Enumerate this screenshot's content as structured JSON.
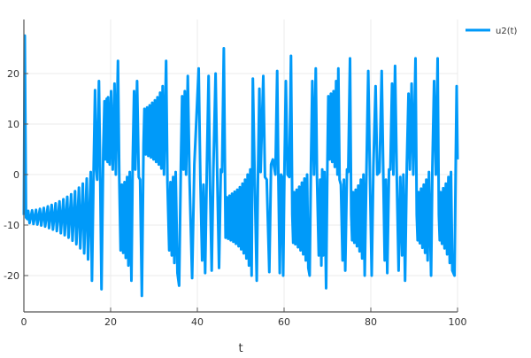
{
  "chart_data": {
    "type": "line",
    "title": "",
    "xlabel": "t",
    "ylabel": "",
    "xlim": [
      0,
      100
    ],
    "ylim": [
      -27.2,
      30.7
    ],
    "xticks": [
      0,
      20,
      40,
      60,
      80,
      100
    ],
    "yticks": [
      -20,
      -10,
      0,
      10,
      20
    ],
    "grid": true,
    "legend": "top-right",
    "series": [
      {
        "name": "u2(t)",
        "color": "#009af9",
        "points": [
          [
            0,
            -8
          ],
          [
            0.2,
            27.5
          ],
          [
            0.5,
            -8.5
          ],
          [
            0.8,
            -8.8
          ],
          [
            1.0,
            -7.2
          ],
          [
            1.3,
            -9.6
          ],
          [
            1.9,
            -7.1
          ],
          [
            2.2,
            -9.8
          ],
          [
            2.8,
            -7.0
          ],
          [
            3.1,
            -9.9
          ],
          [
            3.7,
            -6.8
          ],
          [
            4.0,
            -10.1
          ],
          [
            4.6,
            -6.6
          ],
          [
            4.9,
            -10.3
          ],
          [
            5.5,
            -6.3
          ],
          [
            5.8,
            -10.6
          ],
          [
            6.4,
            -6.0
          ],
          [
            6.7,
            -10.9
          ],
          [
            7.3,
            -5.7
          ],
          [
            7.6,
            -11.2
          ],
          [
            8.2,
            -5.3
          ],
          [
            8.5,
            -11.6
          ],
          [
            9.1,
            -4.9
          ],
          [
            9.4,
            -12.0
          ],
          [
            10.0,
            -4.4
          ],
          [
            10.3,
            -12.5
          ],
          [
            10.9,
            -3.9
          ],
          [
            11.2,
            -13.1
          ],
          [
            11.8,
            -3.3
          ],
          [
            12.1,
            -13.8
          ],
          [
            12.7,
            -2.6
          ],
          [
            13.0,
            -14.6
          ],
          [
            13.6,
            -1.8
          ],
          [
            13.9,
            -15.6
          ],
          [
            14.5,
            -0.8
          ],
          [
            14.8,
            -16.8
          ],
          [
            15.4,
            0.5
          ],
          [
            15.7,
            -21
          ],
          [
            16.1,
            2
          ],
          [
            16.4,
            16.7
          ],
          [
            16.7,
            1
          ],
          [
            16.9,
            -1
          ],
          [
            17.3,
            18.5
          ],
          [
            17.6,
            0
          ],
          [
            17.9,
            -22.7
          ],
          [
            18.3,
            5
          ],
          [
            18.6,
            14.5
          ],
          [
            18.8,
            3
          ],
          [
            19.1,
            15
          ],
          [
            19.3,
            2.5
          ],
          [
            19.4,
            15.3
          ],
          [
            19.8,
            2
          ],
          [
            20.1,
            16.5
          ],
          [
            20.5,
            1
          ],
          [
            20.9,
            18
          ],
          [
            21.2,
            0
          ],
          [
            21.7,
            22.5
          ],
          [
            22.0,
            -1
          ],
          [
            22.3,
            -15
          ],
          [
            22.6,
            -2
          ],
          [
            22.9,
            -15.5
          ],
          [
            23.2,
            -1.5
          ],
          [
            23.5,
            -16.5
          ],
          [
            23.8,
            -0.5
          ],
          [
            24.1,
            -18
          ],
          [
            24.4,
            0.5
          ],
          [
            24.8,
            -21
          ],
          [
            25.1,
            3
          ],
          [
            25.4,
            16.5
          ],
          [
            25.7,
            1
          ],
          [
            26.1,
            18.5
          ],
          [
            26.5,
            -0.5
          ],
          [
            26.8,
            -1
          ],
          [
            27.2,
            -24
          ],
          [
            27.6,
            6
          ],
          [
            27.8,
            13
          ],
          [
            28.1,
            4
          ],
          [
            28.4,
            13.3
          ],
          [
            28.7,
            3.7
          ],
          [
            29.0,
            13.7
          ],
          [
            29.3,
            3.4
          ],
          [
            29.6,
            14.2
          ],
          [
            29.9,
            3
          ],
          [
            30.2,
            14.7
          ],
          [
            30.5,
            2.5
          ],
          [
            30.8,
            15.3
          ],
          [
            31.1,
            2
          ],
          [
            31.4,
            16.2
          ],
          [
            31.7,
            1.2
          ],
          [
            32.0,
            17.5
          ],
          [
            32.3,
            0
          ],
          [
            32.8,
            22.5
          ],
          [
            33.1,
            -1.5
          ],
          [
            33.5,
            -15
          ],
          [
            33.8,
            -1.5
          ],
          [
            34.1,
            -16
          ],
          [
            34.4,
            -0.5
          ],
          [
            34.7,
            -17.5
          ],
          [
            35.0,
            0.5
          ],
          [
            35.4,
            -19.5
          ],
          [
            35.8,
            -22
          ],
          [
            36.2,
            2
          ],
          [
            36.5,
            15.5
          ],
          [
            36.8,
            1
          ],
          [
            37.1,
            16.5
          ],
          [
            37.4,
            0
          ],
          [
            37.8,
            19.5
          ],
          [
            38.2,
            -1
          ],
          [
            38.8,
            -20.5
          ],
          [
            39.3,
            2
          ],
          [
            40.3,
            21
          ],
          [
            40.7,
            -1
          ],
          [
            41.1,
            -17
          ],
          [
            41.4,
            -2
          ],
          [
            41.8,
            -19.5
          ],
          [
            42.2,
            2
          ],
          [
            42.6,
            19.5
          ],
          [
            42.9,
            -1
          ],
          [
            43.3,
            -19
          ],
          [
            43.7,
            1
          ],
          [
            44.2,
            20
          ],
          [
            44.6,
            -0.5
          ],
          [
            45.0,
            -18.5
          ],
          [
            45.4,
            1
          ],
          [
            45.7,
            0.5
          ],
          [
            46.1,
            25
          ],
          [
            46.5,
            -12.5
          ],
          [
            46.8,
            -4.5
          ],
          [
            47.1,
            -12.7
          ],
          [
            47.4,
            -4.2
          ],
          [
            47.7,
            -13
          ],
          [
            48.0,
            -3.8
          ],
          [
            48.3,
            -13.3
          ],
          [
            48.6,
            -3.4
          ],
          [
            48.9,
            -13.7
          ],
          [
            49.2,
            -3
          ],
          [
            49.5,
            -14.2
          ],
          [
            49.8,
            -2.5
          ],
          [
            50.1,
            -14.8
          ],
          [
            50.4,
            -1.8
          ],
          [
            50.7,
            -15.6
          ],
          [
            51.0,
            -1
          ],
          [
            51.3,
            -16.6
          ],
          [
            51.6,
            0
          ],
          [
            51.9,
            -18
          ],
          [
            52.2,
            1
          ],
          [
            52.5,
            -20
          ],
          [
            52.8,
            19
          ],
          [
            53.2,
            0
          ],
          [
            53.7,
            -21
          ],
          [
            54.0,
            1
          ],
          [
            54.3,
            17
          ],
          [
            54.6,
            0.5
          ],
          [
            55.2,
            19.5
          ],
          [
            55.6,
            -0.5
          ],
          [
            56.0,
            -1
          ],
          [
            56.6,
            -19.3
          ],
          [
            57.0,
            2
          ],
          [
            57.4,
            3
          ],
          [
            58.0,
            0
          ],
          [
            58.4,
            20.5
          ],
          [
            58.7,
            -1
          ],
          [
            59.0,
            -19.5
          ],
          [
            59.3,
            0
          ],
          [
            59.5,
            -0.5
          ],
          [
            59.8,
            -20
          ],
          [
            60.1,
            2
          ],
          [
            60.4,
            18.5
          ],
          [
            60.8,
            0
          ],
          [
            61.2,
            -0.5
          ],
          [
            61.6,
            23.5
          ],
          [
            61.9,
            -8
          ],
          [
            62.1,
            -13.5
          ],
          [
            62.3,
            -3.5
          ],
          [
            62.6,
            -13.8
          ],
          [
            62.9,
            -3
          ],
          [
            63.2,
            -14.4
          ],
          [
            63.5,
            -2.4
          ],
          [
            63.8,
            -15
          ],
          [
            64.1,
            -1.6
          ],
          [
            64.4,
            -15.8
          ],
          [
            64.7,
            -0.8
          ],
          [
            65.0,
            -17
          ],
          [
            65.3,
            0
          ],
          [
            65.6,
            -18.5
          ],
          [
            65.9,
            -20
          ],
          [
            66.2,
            2
          ],
          [
            66.5,
            18.5
          ],
          [
            66.9,
            0
          ],
          [
            67.3,
            21
          ],
          [
            67.6,
            -0.5
          ],
          [
            68.0,
            -16
          ],
          [
            68.3,
            -1
          ],
          [
            68.6,
            -18
          ],
          [
            68.8,
            1
          ],
          [
            69.0,
            -16
          ],
          [
            69.3,
            0.5
          ],
          [
            69.7,
            -22.5
          ],
          [
            70.0,
            3
          ],
          [
            70.2,
            15.5
          ],
          [
            70.5,
            3
          ],
          [
            70.8,
            16
          ],
          [
            71.1,
            2.5
          ],
          [
            71.4,
            16.5
          ],
          [
            71.7,
            1.5
          ],
          [
            72.0,
            18.5
          ],
          [
            72.3,
            0
          ],
          [
            72.5,
            21
          ],
          [
            72.8,
            -1
          ],
          [
            73.1,
            -2
          ],
          [
            73.5,
            -17
          ],
          [
            73.8,
            -1
          ],
          [
            74.1,
            -19
          ],
          [
            74.5,
            1
          ],
          [
            74.8,
            0.5
          ],
          [
            75.2,
            23
          ],
          [
            75.5,
            -8
          ],
          [
            75.7,
            -13
          ],
          [
            75.9,
            -3.5
          ],
          [
            76.2,
            -13.5
          ],
          [
            76.5,
            -3
          ],
          [
            76.8,
            -14.2
          ],
          [
            77.1,
            -2.2
          ],
          [
            77.4,
            -15.2
          ],
          [
            77.7,
            -1
          ],
          [
            78.0,
            -16.6
          ],
          [
            78.3,
            0
          ],
          [
            78.6,
            -20
          ],
          [
            79.0,
            1
          ],
          [
            79.4,
            20.5
          ],
          [
            79.8,
            -0.5
          ],
          [
            80.2,
            -20
          ],
          [
            80.6,
            1.5
          ],
          [
            81.1,
            17.5
          ],
          [
            81.5,
            0
          ],
          [
            82.0,
            0.5
          ],
          [
            82.5,
            20.5
          ],
          [
            82.9,
            -1
          ],
          [
            83.2,
            -17
          ],
          [
            83.5,
            -1
          ],
          [
            83.8,
            -19.5
          ],
          [
            84.2,
            1
          ],
          [
            84.5,
            1
          ],
          [
            84.9,
            18
          ],
          [
            85.2,
            0
          ],
          [
            85.6,
            21.5
          ],
          [
            86.0,
            -1
          ],
          [
            86.4,
            -19
          ],
          [
            86.8,
            -0.5
          ],
          [
            87.2,
            -16
          ],
          [
            87.5,
            0
          ],
          [
            87.9,
            -21
          ],
          [
            88.3,
            2
          ],
          [
            88.7,
            16
          ],
          [
            89.0,
            1
          ],
          [
            89.4,
            18
          ],
          [
            89.8,
            0
          ],
          [
            90.3,
            23
          ],
          [
            90.6,
            -8
          ],
          [
            90.8,
            -13
          ],
          [
            91.0,
            -3.5
          ],
          [
            91.3,
            -13.6
          ],
          [
            91.6,
            -2.8
          ],
          [
            91.9,
            -14.5
          ],
          [
            92.2,
            -2
          ],
          [
            92.5,
            -15.5
          ],
          [
            92.8,
            -1
          ],
          [
            93.1,
            -17
          ],
          [
            93.4,
            0.5
          ],
          [
            93.9,
            -20
          ],
          [
            94.2,
            1.5
          ],
          [
            94.6,
            18.5
          ],
          [
            95.0,
            0
          ],
          [
            95.4,
            23
          ],
          [
            95.7,
            -8
          ],
          [
            95.9,
            -13
          ],
          [
            96.1,
            -3.5
          ],
          [
            96.4,
            -13.7
          ],
          [
            96.7,
            -2.7
          ],
          [
            97.0,
            -14.6
          ],
          [
            97.3,
            -1.8
          ],
          [
            97.6,
            -15.8
          ],
          [
            97.9,
            -0.5
          ],
          [
            98.2,
            -17.5
          ],
          [
            98.5,
            0.5
          ],
          [
            98.8,
            -19
          ],
          [
            99.3,
            -20
          ],
          [
            99.6,
            3
          ],
          [
            99.8,
            17.5
          ],
          [
            100,
            3
          ]
        ]
      }
    ]
  }
}
